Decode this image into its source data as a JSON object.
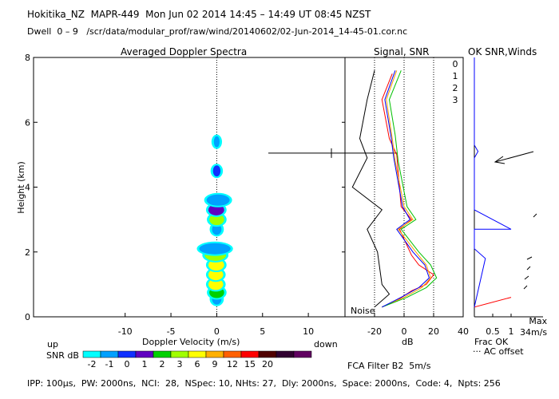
{
  "header": {
    "title": "Hokitika_NZ  MAPR-449  Mon Jun 02 2014 14:45 – 14:49 UT 08:45 NZST",
    "dwell": "Dwell  0 – 9   /scr/data/modular_prof/raw/wind/20140602/02-Jun-2014_14-45-01.cor.nc"
  },
  "footer": {
    "params": "IPP: 100μs,  PW: 2000ns,  NCI:  28,  NSpec: 10, NHts: 27,  Dly: 2000ns,  Space: 2000ns,  Code: 4,  Npts: 256"
  },
  "chart_data": [
    {
      "type": "heatmap",
      "title": "Averaged Doppler Spectra",
      "xlabel": "Doppler Velocity (m/s)",
      "ylabel": "Height (km)",
      "xlim": [
        -20,
        14
      ],
      "ylim": [
        0,
        8
      ],
      "x_ticks": [
        "-10",
        "-5",
        "0",
        "5",
        "10"
      ],
      "y_ticks": [
        "0",
        "2",
        "4",
        "6",
        "8"
      ],
      "left_note": "up",
      "right_note": "down",
      "colorbar": {
        "label": "SNR dB",
        "levels": [
          "-2",
          "-1",
          "0",
          "1",
          "2",
          "3",
          "6",
          "9",
          "12",
          "15",
          "20"
        ],
        "colors": [
          "#00ffff",
          "#00a0ff",
          "#1030ff",
          "#6000c0",
          "#00d000",
          "#a0ff00",
          "#ffff00",
          "#ffb000",
          "#ff6000",
          "#ff0000",
          "#500000",
          "#300030",
          "#600060"
        ]
      },
      "blobs": [
        {
          "height": 0.55,
          "vmin": -0.6,
          "vmax": 0.6,
          "level": 1
        },
        {
          "height": 0.75,
          "vmin": -0.9,
          "vmax": 0.9,
          "level": 4
        },
        {
          "height": 1.0,
          "vmin": -1.0,
          "vmax": 0.8,
          "level": 6
        },
        {
          "height": 1.3,
          "vmin": -1.0,
          "vmax": 0.8,
          "level": 6
        },
        {
          "height": 1.6,
          "vmin": -1.0,
          "vmax": 0.9,
          "level": 6
        },
        {
          "height": 1.9,
          "vmin": -1.4,
          "vmax": 1.1,
          "level": 5
        },
        {
          "height": 2.1,
          "vmin": -2.0,
          "vmax": 1.6,
          "level": 1
        },
        {
          "height": 2.7,
          "vmin": -0.6,
          "vmax": 0.6,
          "level": 1
        },
        {
          "height": 3.0,
          "vmin": -0.9,
          "vmax": 0.9,
          "level": 5
        },
        {
          "height": 3.3,
          "vmin": -1.0,
          "vmax": 0.9,
          "level": 3
        },
        {
          "height": 3.6,
          "vmin": -1.2,
          "vmax": 1.5,
          "level": 1
        },
        {
          "height": 4.5,
          "vmin": -0.5,
          "vmax": 0.5,
          "level": 2
        },
        {
          "height": 5.4,
          "vmin": -0.4,
          "vmax": 0.4,
          "level": 1
        }
      ]
    },
    {
      "type": "line",
      "title": "Signal, SNR",
      "xlabel": "dB",
      "xlim": [
        -40,
        40
      ],
      "ylim": [
        0,
        8
      ],
      "x_ticks": [
        "-20",
        "0",
        "20",
        "40"
      ],
      "noise_label": "Noise",
      "beam_labels": [
        "0",
        "1",
        "2",
        "3"
      ],
      "series": [
        {
          "name": "0",
          "color": "#ff0000",
          "points": [
            [
              -15,
              0.3
            ],
            [
              -5,
              0.5
            ],
            [
              5,
              0.8
            ],
            [
              15,
              1.0
            ],
            [
              20,
              1.3
            ],
            [
              10,
              1.6
            ],
            [
              5,
              1.9
            ],
            [
              -3,
              2.7
            ],
            [
              5,
              3.0
            ],
            [
              -2,
              3.4
            ],
            [
              -5,
              5.0
            ],
            [
              -10,
              5.5
            ],
            [
              -15,
              6.7
            ],
            [
              -8,
              7.5
            ]
          ]
        },
        {
          "name": "1",
          "color": "#ffa000",
          "points": [
            [
              -15,
              0.3
            ],
            [
              0,
              0.6
            ],
            [
              12,
              0.9
            ],
            [
              18,
              1.2
            ],
            [
              15,
              1.6
            ],
            [
              8,
              2.0
            ],
            [
              -4,
              2.7
            ],
            [
              6,
              3.0
            ],
            [
              0,
              3.4
            ],
            [
              -6,
              4.8
            ],
            [
              -8,
              5.5
            ],
            [
              -12,
              6.7
            ],
            [
              -5,
              7.6
            ]
          ]
        },
        {
          "name": "2",
          "color": "#00c000",
          "points": [
            [
              -15,
              0.3
            ],
            [
              2,
              0.6
            ],
            [
              15,
              0.9
            ],
            [
              22,
              1.2
            ],
            [
              18,
              1.6
            ],
            [
              10,
              2.0
            ],
            [
              -2,
              2.7
            ],
            [
              8,
              3.0
            ],
            [
              2,
              3.4
            ],
            [
              -4,
              4.8
            ],
            [
              -6,
              5.6
            ],
            [
              -10,
              6.7
            ],
            [
              -2,
              7.6
            ]
          ]
        },
        {
          "name": "3",
          "color": "#0000ff",
          "points": [
            [
              -15,
              0.3
            ],
            [
              -2,
              0.6
            ],
            [
              10,
              0.9
            ],
            [
              17,
              1.2
            ],
            [
              14,
              1.6
            ],
            [
              6,
              2.0
            ],
            [
              -5,
              2.7
            ],
            [
              4,
              3.0
            ],
            [
              -1,
              3.4
            ],
            [
              -7,
              4.9
            ],
            [
              -9,
              5.6
            ],
            [
              -13,
              6.7
            ],
            [
              -6,
              7.6
            ]
          ]
        },
        {
          "name": "noise",
          "color": "#000000",
          "points": [
            [
              -20,
              0.3
            ],
            [
              -10,
              0.7
            ],
            [
              -15,
              1.0
            ],
            [
              -18,
              2.0
            ],
            [
              -25,
              2.7
            ],
            [
              -15,
              3.3
            ],
            [
              -35,
              4.0
            ],
            [
              -25,
              4.9
            ],
            [
              -30,
              5.5
            ],
            [
              -25,
              6.7
            ],
            [
              -20,
              7.6
            ]
          ]
        }
      ]
    },
    {
      "type": "line",
      "title": "OK SNR,Winds",
      "xlabel": "Frac OK",
      "x_ticks": [
        "0.5",
        "1"
      ],
      "xlim": [
        0,
        1
      ],
      "ylim": [
        0,
        8
      ],
      "wind_max_label": "Max\n34m/s",
      "offset_label": "··· AC offset",
      "filter_label": "FCA Filter B2  5m/s",
      "series": [
        {
          "name": "0",
          "color": "#ff0000",
          "points": [
            [
              0,
              0.3
            ],
            [
              1,
              0.6
            ]
          ]
        },
        {
          "name": "3",
          "color": "#0000ff",
          "points": [
            [
              0,
              0.3
            ],
            [
              0.3,
              1.8
            ],
            [
              0,
              2.1
            ],
            [
              0,
              2.7
            ],
            [
              1,
              2.7
            ],
            [
              0,
              3.3
            ],
            [
              0,
              4.9
            ],
            [
              0.1,
              5.1
            ],
            [
              0,
              5.3
            ],
            [
              0,
              8
            ]
          ]
        }
      ]
    }
  ]
}
